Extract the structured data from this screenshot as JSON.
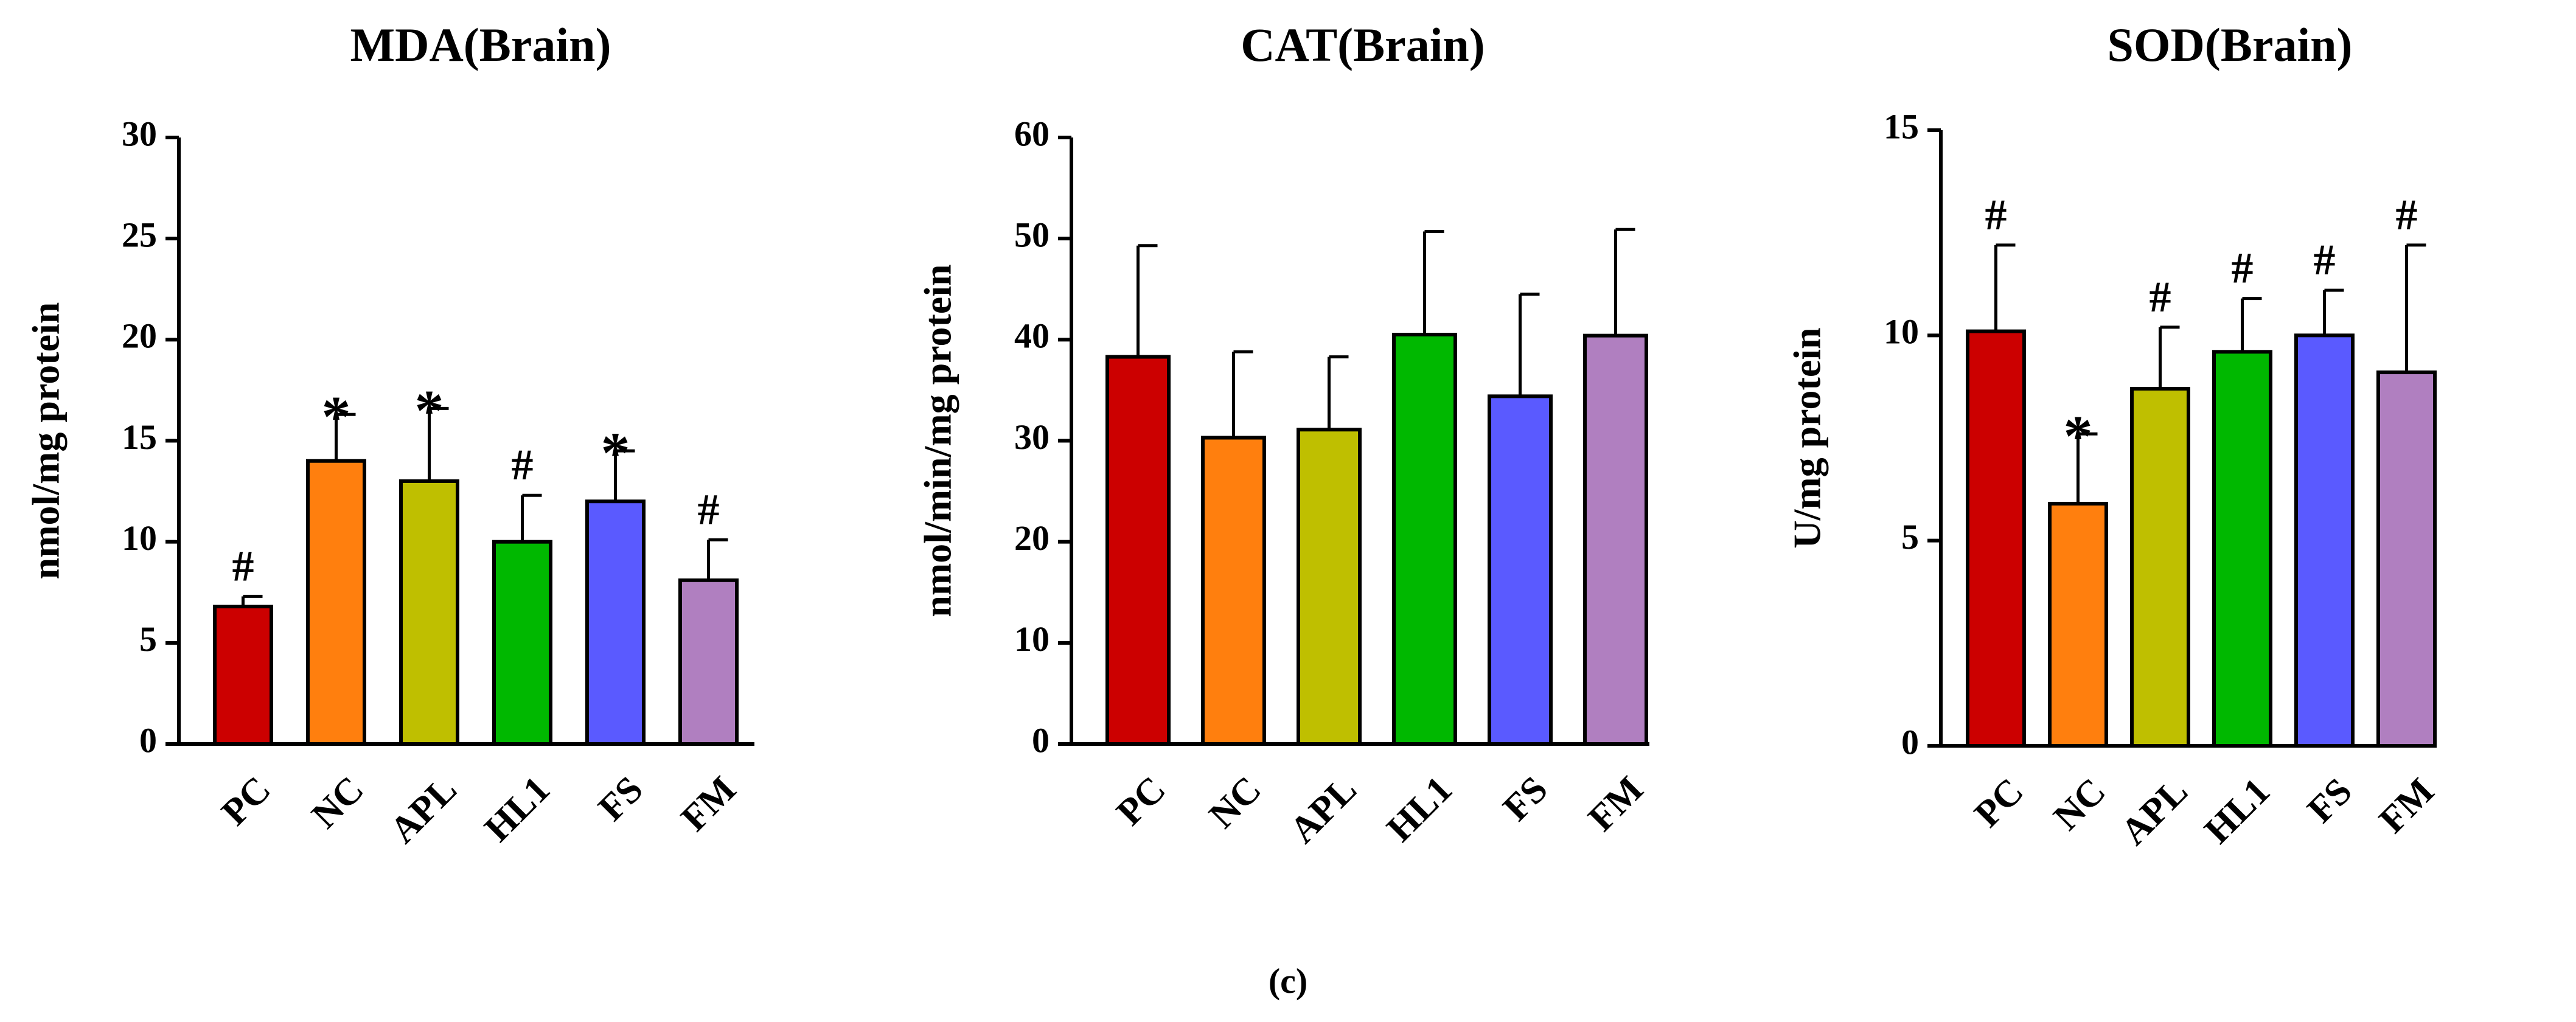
{
  "figure_label": "(c)",
  "chart_data": [
    {
      "type": "bar",
      "title": "MDA(Brain)",
      "xlabel": "",
      "ylabel": "nmol/mg protein",
      "ylim": [
        0,
        30
      ],
      "yticks": [
        0,
        5,
        10,
        15,
        20,
        25,
        30
      ],
      "categories": [
        "PC",
        "NC",
        "APL",
        "HL1",
        "FS",
        "FM"
      ],
      "values": [
        6.8,
        14.0,
        13.0,
        10.0,
        12.0,
        8.1
      ],
      "errors": [
        0.5,
        2.3,
        3.6,
        2.3,
        2.5,
        2.0
      ],
      "annotations": [
        "#",
        "*",
        "*",
        "#",
        "*",
        "#"
      ],
      "colors": [
        "#cc0000",
        "#ff7f0e",
        "#bfbf00",
        "#00b800",
        "#5a5aff",
        "#b07fc0"
      ]
    },
    {
      "type": "bar",
      "title": "CAT(Brain)",
      "xlabel": "",
      "ylabel": "nmol/min/mg protein",
      "ylim": [
        0,
        60
      ],
      "yticks": [
        0,
        10,
        20,
        30,
        40,
        50,
        60
      ],
      "categories": [
        "PC",
        "NC",
        "APL",
        "HL1",
        "FS",
        "FM"
      ],
      "values": [
        38.3,
        30.3,
        31.1,
        40.5,
        34.4,
        40.4
      ],
      "errors": [
        11.0,
        8.5,
        7.2,
        10.2,
        10.1,
        10.5
      ],
      "annotations": [
        "",
        "",
        "",
        "",
        "",
        ""
      ],
      "colors": [
        "#cc0000",
        "#ff7f0e",
        "#bfbf00",
        "#00b800",
        "#5a5aff",
        "#b07fc0"
      ]
    },
    {
      "type": "bar",
      "title": "SOD(Brain)",
      "xlabel": "",
      "ylabel": "U/mg protein",
      "ylim": [
        0,
        15
      ],
      "yticks": [
        0,
        5,
        10,
        15
      ],
      "categories": [
        "PC",
        "NC",
        "APL",
        "HL1",
        "FS",
        "FM"
      ],
      "values": [
        10.1,
        5.9,
        8.7,
        9.6,
        10.0,
        9.1
      ],
      "errors": [
        2.1,
        1.7,
        1.5,
        1.3,
        1.1,
        3.1
      ],
      "annotations": [
        "#",
        "*",
        "#",
        "#",
        "#",
        "#"
      ],
      "colors": [
        "#cc0000",
        "#ff7f0e",
        "#bfbf00",
        "#00b800",
        "#5a5aff",
        "#b07fc0"
      ]
    }
  ]
}
